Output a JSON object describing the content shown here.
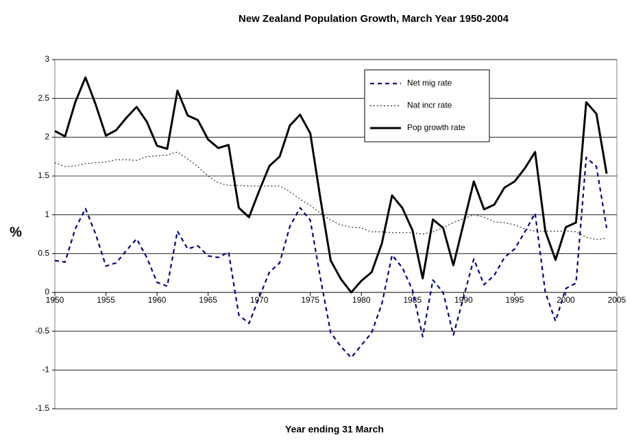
{
  "chart_data": {
    "type": "line",
    "title": "New Zealand Population Growth, March Year 1950-2004",
    "x_label": "Year ending 31 March",
    "y_label": "%",
    "x": [
      1950,
      1951,
      1952,
      1953,
      1954,
      1955,
      1956,
      1957,
      1958,
      1959,
      1960,
      1961,
      1962,
      1963,
      1964,
      1965,
      1966,
      1967,
      1968,
      1969,
      1970,
      1971,
      1972,
      1973,
      1974,
      1975,
      1976,
      1977,
      1978,
      1979,
      1980,
      1981,
      1982,
      1983,
      1984,
      1985,
      1986,
      1987,
      1988,
      1989,
      1990,
      1991,
      1992,
      1993,
      1994,
      1995,
      1996,
      1997,
      1998,
      1999,
      2000,
      2001,
      2002,
      2003,
      2004
    ],
    "series": [
      {
        "name": "Net mig rate",
        "color": "#000080",
        "dash": "dashed",
        "values": [
          0.41,
          0.39,
          0.82,
          1.08,
          0.75,
          0.34,
          0.38,
          0.54,
          0.69,
          0.45,
          0.13,
          0.08,
          0.79,
          0.56,
          0.6,
          0.47,
          0.45,
          0.52,
          -0.29,
          -0.4,
          -0.06,
          0.26,
          0.38,
          0.85,
          1.09,
          0.93,
          0.18,
          -0.52,
          -0.7,
          -0.84,
          -0.68,
          -0.52,
          -0.15,
          0.48,
          0.32,
          0.03,
          -0.57,
          0.16,
          0.0,
          -0.55,
          -0.06,
          0.43,
          0.1,
          0.22,
          0.45,
          0.56,
          0.78,
          1.02,
          0.0,
          -0.37,
          0.05,
          0.12,
          1.74,
          1.62,
          0.83
        ]
      },
      {
        "name": "Nat incr rate",
        "color": "#000000",
        "dash": "dotted",
        "values": [
          1.67,
          1.62,
          1.63,
          1.66,
          1.67,
          1.68,
          1.71,
          1.71,
          1.7,
          1.75,
          1.76,
          1.77,
          1.81,
          1.72,
          1.62,
          1.5,
          1.41,
          1.38,
          1.38,
          1.37,
          1.37,
          1.37,
          1.37,
          1.3,
          1.2,
          1.12,
          1.02,
          0.93,
          0.87,
          0.84,
          0.83,
          0.78,
          0.78,
          0.77,
          0.77,
          0.77,
          0.75,
          0.78,
          0.83,
          0.9,
          0.95,
          1.0,
          0.97,
          0.91,
          0.9,
          0.87,
          0.82,
          0.79,
          0.79,
          0.79,
          0.79,
          0.78,
          0.71,
          0.68,
          0.7
        ]
      },
      {
        "name": "Pop growth rate",
        "color": "#000000",
        "dash": "solid",
        "values": [
          2.08,
          2.01,
          2.45,
          2.77,
          2.42,
          2.02,
          2.09,
          2.25,
          2.39,
          2.2,
          1.89,
          1.85,
          2.6,
          2.28,
          2.22,
          1.97,
          1.86,
          1.9,
          1.09,
          0.97,
          1.31,
          1.63,
          1.75,
          2.15,
          2.29,
          2.05,
          1.2,
          0.41,
          0.17,
          0.0,
          0.15,
          0.26,
          0.63,
          1.25,
          1.09,
          0.8,
          0.18,
          0.94,
          0.83,
          0.35,
          0.89,
          1.43,
          1.07,
          1.13,
          1.35,
          1.43,
          1.6,
          1.81,
          0.79,
          0.42,
          0.84,
          0.9,
          2.45,
          2.3,
          1.53
        ]
      }
    ],
    "xlim": [
      1950,
      2005
    ],
    "xticks": [
      1950,
      1955,
      1960,
      1965,
      1970,
      1975,
      1980,
      1985,
      1990,
      1995,
      2000,
      2005
    ],
    "ylim": [
      -1.5,
      3
    ],
    "yticks": [
      -1.5,
      -1,
      -0.5,
      0,
      0.5,
      1,
      1.5,
      2,
      2.5,
      3
    ],
    "grid": true,
    "legend": "upper right"
  }
}
